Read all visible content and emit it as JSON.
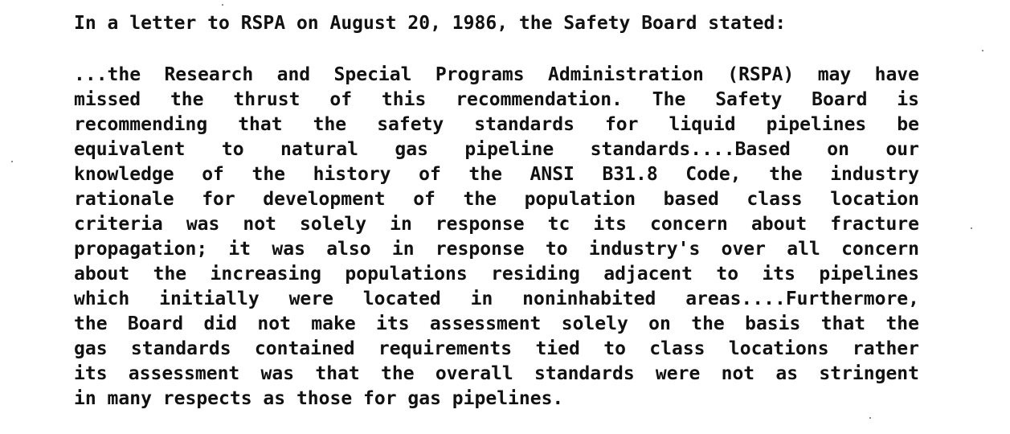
{
  "document": {
    "intro": "In a letter to RSPA on August 20, 1986, the Safety Board stated:",
    "quote_lines": [
      "...the Research and Special Programs Administration (RSPA) may have",
      "missed the thrust of this recommendation.  The Safety Board is",
      "recommending that the safety standards for liquid pipelines be",
      "equivalent to natural gas pipeline standards....Based on our",
      "knowledge of the history of the ANSI B31.8 Code, the industry",
      "rationale for development of the population based class location",
      "criteria was not solely in response tc its concern about fracture",
      "propagation; it was also in response to industry's over all concern",
      "about the increasing populations residing adjacent to its pipelines",
      "which initially were located in noninhabited areas....Furthermore,",
      "the Board did not make its assessment solely on the basis that the",
      "gas standards contained requirements tied to class locations rather",
      "its assessment was that the overall standards were not as stringent",
      "in many respects as those for gas pipelines."
    ]
  }
}
